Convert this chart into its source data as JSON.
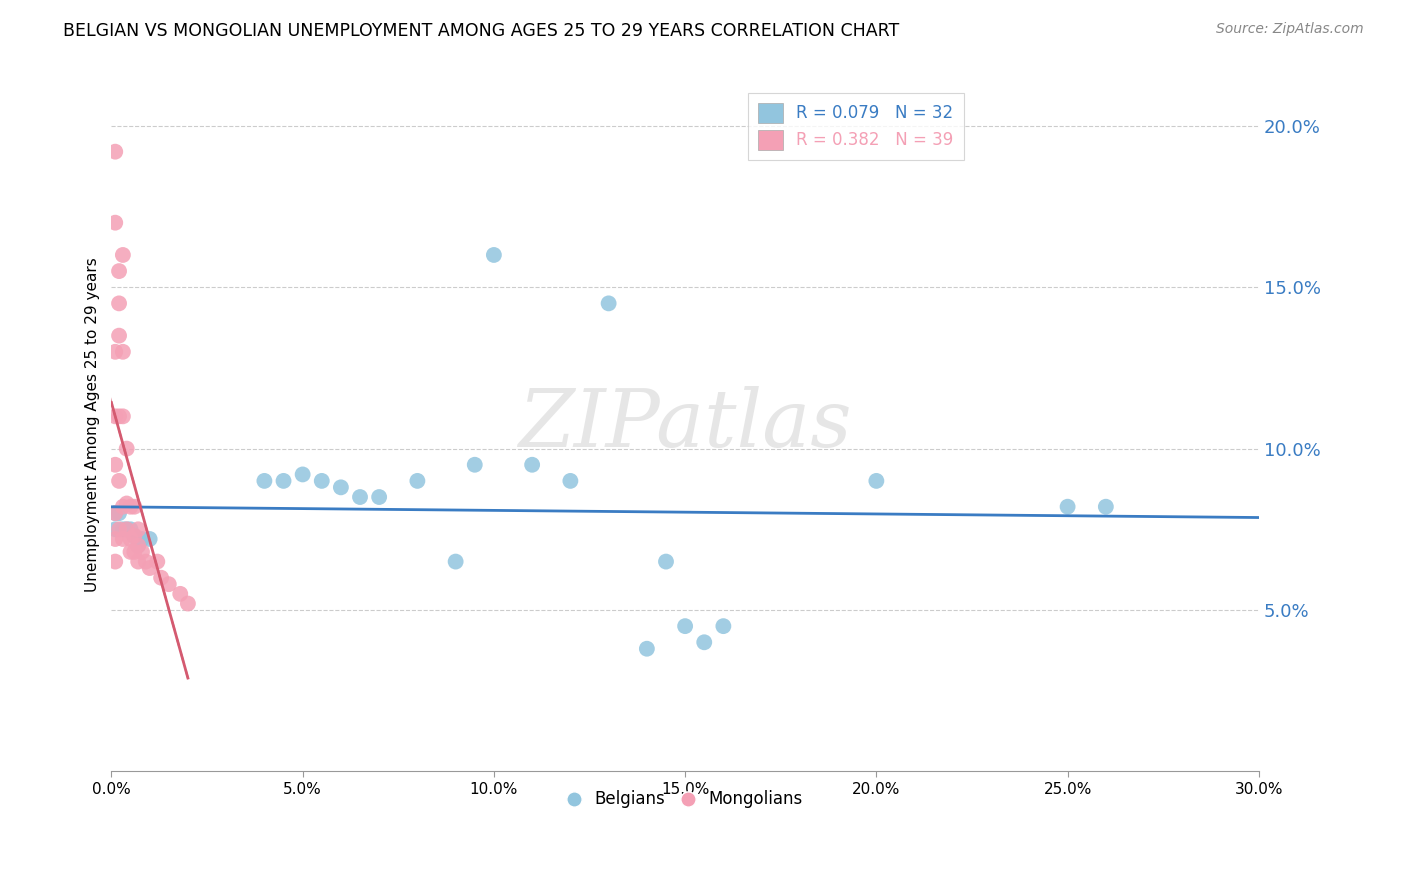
{
  "title": "BELGIAN VS MONGOLIAN UNEMPLOYMENT AMONG AGES 25 TO 29 YEARS CORRELATION CHART",
  "source": "Source: ZipAtlas.com",
  "ylabel": "Unemployment Among Ages 25 to 29 years",
  "xlim": [
    0.0,
    0.3
  ],
  "ylim": [
    0.0,
    0.215
  ],
  "xticks": [
    0.0,
    0.05,
    0.1,
    0.15,
    0.2,
    0.25,
    0.3
  ],
  "yticks_right": [
    0.05,
    0.1,
    0.15,
    0.2
  ],
  "ytick_labels_right": [
    "5.0%",
    "10.0%",
    "15.0%",
    "20.0%"
  ],
  "xtick_labels": [
    "0.0%",
    "5.0%",
    "10.0%",
    "15.0%",
    "20.0%",
    "25.0%",
    "30.0%"
  ],
  "belgian_color": "#92C5DE",
  "mongolian_color": "#F4A0B5",
  "belgian_R": 0.079,
  "belgian_N": 32,
  "mongolian_R": 0.382,
  "mongolian_N": 39,
  "trend_blue": "#3A7CC3",
  "trend_pink": "#D45A70",
  "watermark": "ZIPatlas",
  "watermark_color": "#C8C8C8",
  "belgians_x": [
    0.001,
    0.001,
    0.002,
    0.003,
    0.004,
    0.005,
    0.006,
    0.007,
    0.008,
    0.01,
    0.04,
    0.045,
    0.05,
    0.055,
    0.06,
    0.065,
    0.07,
    0.08,
    0.09,
    0.095,
    0.1,
    0.11,
    0.12,
    0.13,
    0.14,
    0.145,
    0.15,
    0.155,
    0.16,
    0.2,
    0.25,
    0.26
  ],
  "belgians_y": [
    0.075,
    0.08,
    0.08,
    0.075,
    0.075,
    0.075,
    0.073,
    0.07,
    0.072,
    0.072,
    0.09,
    0.09,
    0.092,
    0.09,
    0.088,
    0.085,
    0.085,
    0.09,
    0.065,
    0.095,
    0.16,
    0.095,
    0.09,
    0.145,
    0.038,
    0.065,
    0.045,
    0.04,
    0.045,
    0.09,
    0.082,
    0.082
  ],
  "mongolians_x": [
    0.001,
    0.001,
    0.001,
    0.001,
    0.001,
    0.001,
    0.001,
    0.001,
    0.002,
    0.002,
    0.002,
    0.002,
    0.002,
    0.002,
    0.003,
    0.003,
    0.003,
    0.003,
    0.003,
    0.004,
    0.004,
    0.004,
    0.005,
    0.005,
    0.005,
    0.006,
    0.006,
    0.006,
    0.007,
    0.007,
    0.007,
    0.008,
    0.009,
    0.01,
    0.012,
    0.013,
    0.015,
    0.018,
    0.02
  ],
  "mongolians_y": [
    0.192,
    0.17,
    0.13,
    0.11,
    0.095,
    0.08,
    0.072,
    0.065,
    0.155,
    0.145,
    0.135,
    0.11,
    0.09,
    0.075,
    0.16,
    0.13,
    0.11,
    0.082,
    0.072,
    0.1,
    0.083,
    0.075,
    0.082,
    0.072,
    0.068,
    0.082,
    0.073,
    0.068,
    0.075,
    0.07,
    0.065,
    0.068,
    0.065,
    0.063,
    0.065,
    0.06,
    0.058,
    0.055,
    0.052
  ]
}
